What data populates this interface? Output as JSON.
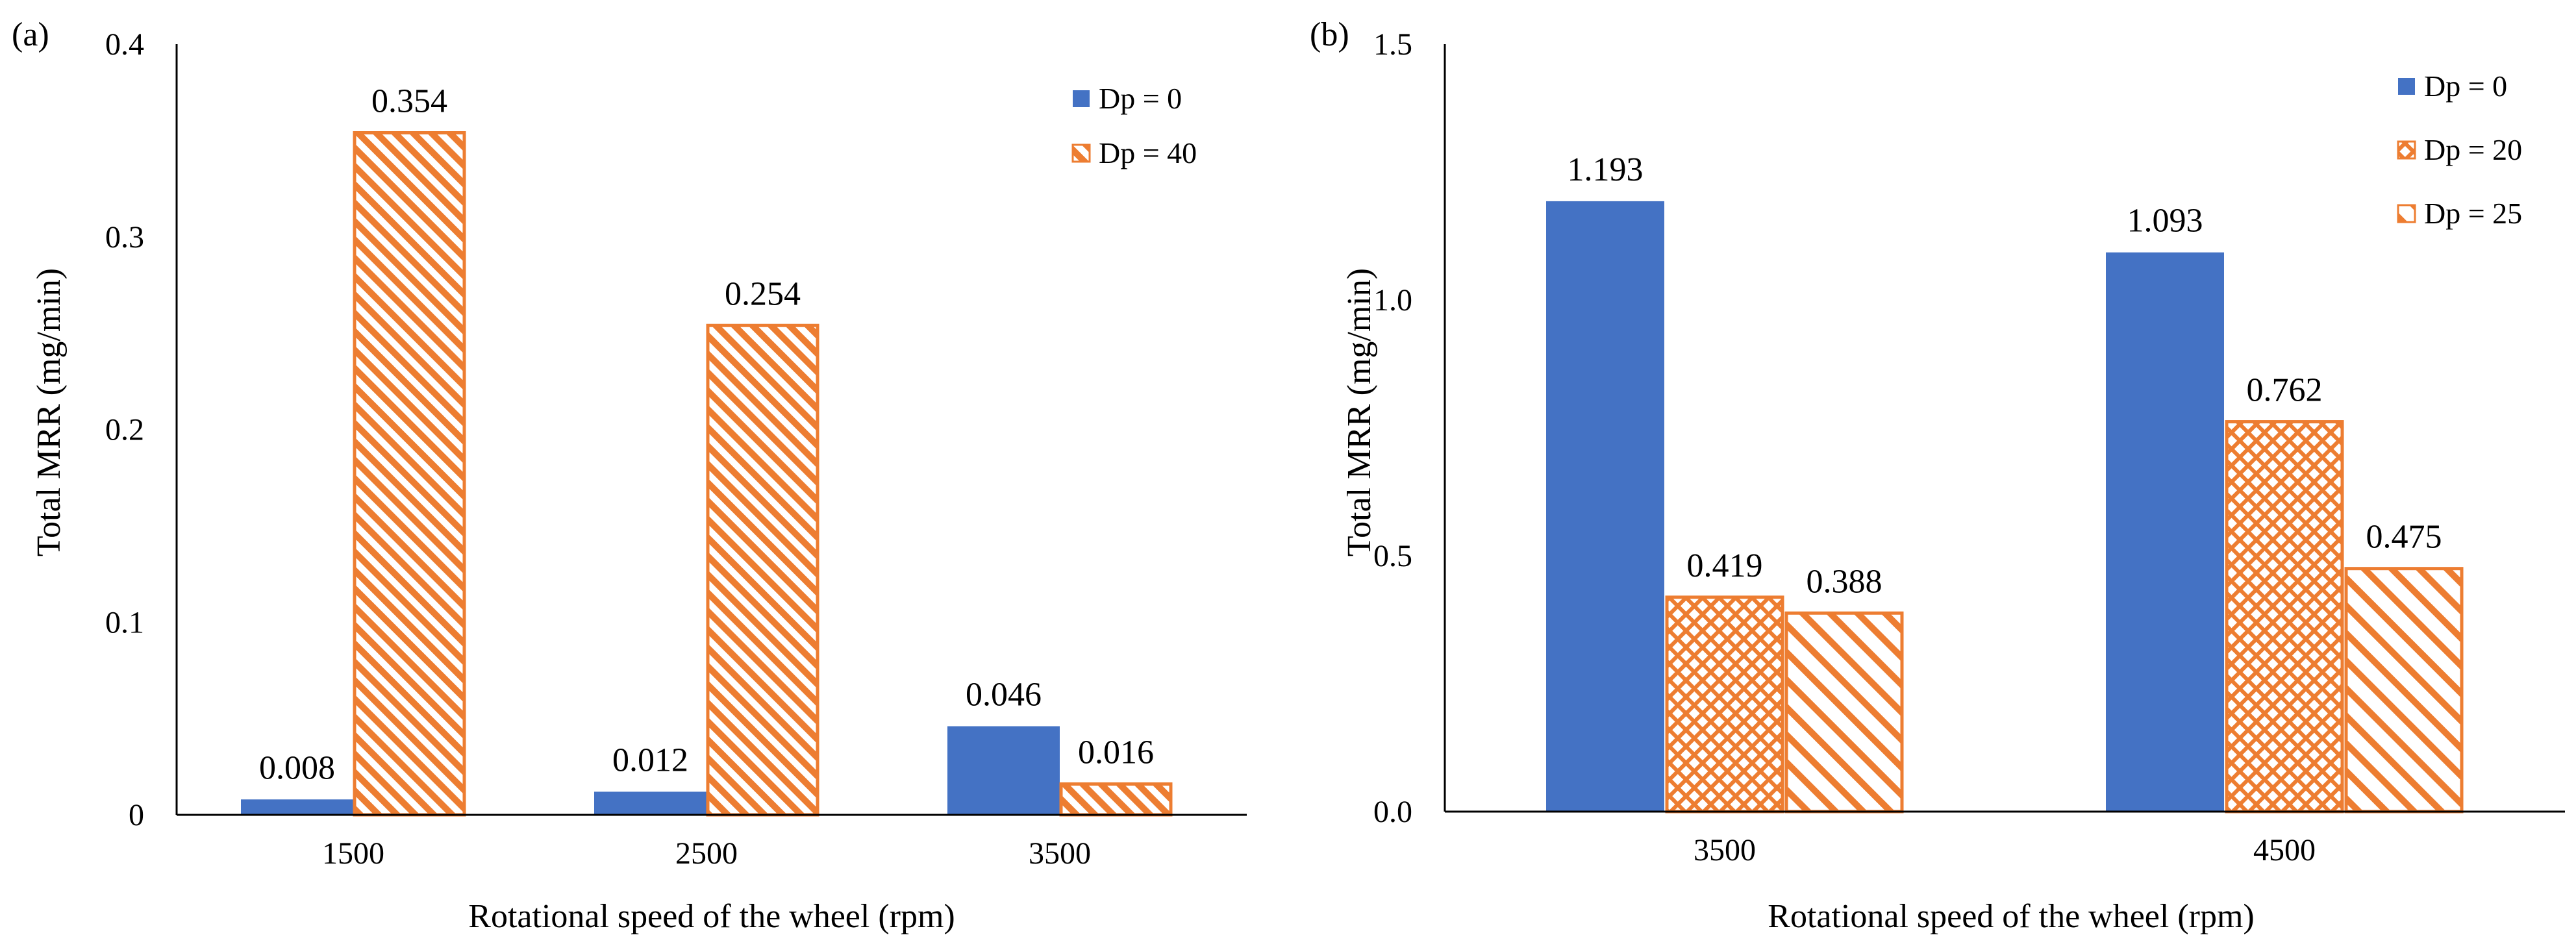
{
  "chart_data": [
    {
      "panel_label": "(a)",
      "type": "bar",
      "xlabel": "Rotational speed of the wheel (rpm)",
      "ylabel": "Total MRR (mg/min)",
      "ylim": [
        0,
        0.4
      ],
      "yticks": [
        0,
        0.1,
        0.2,
        0.3,
        0.4
      ],
      "ytick_labels": [
        "0",
        "0.1",
        "0.2",
        "0.3",
        "0.4"
      ],
      "categories": [
        "1500",
        "2500",
        "3500"
      ],
      "legend_position": "top-right",
      "series": [
        {
          "name": "Dp = 0",
          "style": "solid",
          "values": [
            0.008,
            0.012,
            0.046
          ],
          "labels": [
            "0.008",
            "0.012",
            "0.046"
          ]
        },
        {
          "name": "Dp = 40",
          "style": "hatch-dense",
          "values": [
            0.354,
            0.254,
            0.016
          ],
          "labels": [
            "0.354",
            "0.254",
            "0.016"
          ]
        }
      ]
    },
    {
      "panel_label": "(b)",
      "type": "bar",
      "xlabel": "Rotational speed of the wheel (rpm)",
      "ylabel": "Total MRR (mg/min)",
      "ylim": [
        0,
        1.5
      ],
      "yticks": [
        0,
        0.5,
        1.0,
        1.5
      ],
      "ytick_labels": [
        "0.0",
        "0.5",
        "1.0",
        "1.5"
      ],
      "categories": [
        "3500",
        "4500"
      ],
      "legend_position": "top-right",
      "series": [
        {
          "name": "Dp = 0",
          "style": "solid",
          "values": [
            1.193,
            1.093
          ],
          "labels": [
            "1.193",
            "1.093"
          ]
        },
        {
          "name": "Dp = 20",
          "style": "crosshatch",
          "values": [
            0.419,
            0.762
          ],
          "labels": [
            "0.419",
            "0.762"
          ]
        },
        {
          "name": "Dp = 25",
          "style": "hatch-wide",
          "values": [
            0.388,
            0.475
          ],
          "labels": [
            "0.388",
            "0.475"
          ]
        }
      ]
    }
  ],
  "colors": {
    "blue": "#4472C4",
    "orange": "#ED7D31",
    "axis": "#000000"
  }
}
